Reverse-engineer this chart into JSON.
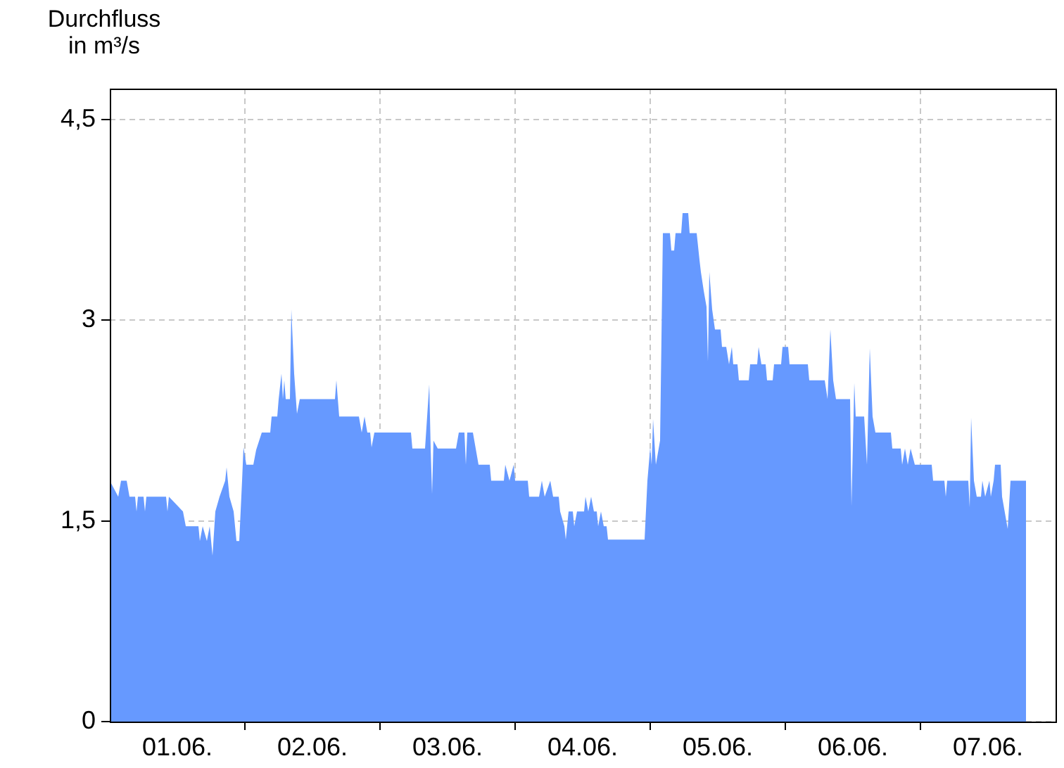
{
  "chart_data": {
    "type": "area",
    "ylabel": "Durchfluss in m³/s",
    "color": "#6699ff",
    "grid": true,
    "xlim": [
      "--06-01T00:00",
      "--06-08T00:00"
    ],
    "ylim": [
      0,
      4.73
    ],
    "xticks": [
      {
        "value": "--06-01T12:00",
        "label": "01.06."
      },
      {
        "value": "--06-02T00:00",
        "label": null
      },
      {
        "value": "--06-02T12:00",
        "label": "02.06."
      },
      {
        "value": "--06-03T00:00",
        "label": null
      },
      {
        "value": "--06-03T12:00",
        "label": "03.06."
      },
      {
        "value": "--06-04T00:00",
        "label": null
      },
      {
        "value": "--06-04T12:00",
        "label": "04.06."
      },
      {
        "value": "--06-05T00:00",
        "label": null
      },
      {
        "value": "--06-05T12:00",
        "label": "05.06."
      },
      {
        "value": "--06-06T00:00",
        "label": null
      },
      {
        "value": "--06-06T12:00",
        "label": "06.06."
      },
      {
        "value": "--06-07T00:00",
        "label": null
      },
      {
        "value": "--06-07T12:00",
        "label": "07.06."
      }
    ],
    "yticks": [
      0,
      {
        "value": 1.5,
        "label": "1,5"
      },
      3,
      {
        "value": 4.5,
        "label": "4,5"
      }
    ],
    "x": [
      "--06-01T00:00",
      "--06-01T01:30",
      "--06-01T02:00",
      "--06-01T03:00",
      "--06-01T03:30",
      "--06-01T04:30",
      "--06-01T04:45",
      "--06-01T05:00",
      "--06-01T06:00",
      "--06-01T06:15",
      "--06-01T06:30",
      "--06-01T10:00",
      "--06-01T10:15",
      "--06-01T10:30",
      "--06-01T13:00",
      "--06-01T13:30",
      "--06-01T15:45",
      "--06-01T16:00",
      "--06-01T16:30",
      "--06-01T17:15",
      "--06-01T17:45",
      "--06-01T18:15",
      "--06-01T18:45",
      "--06-01T19:30",
      "--06-01T20:30",
      "--06-01T20:45",
      "--06-01T21:15",
      "--06-01T22:00",
      "--06-01T22:30",
      "--06-01T23:00",
      "--06-01T23:30",
      "--06-01T23:45",
      "--06-02T00:15",
      "--06-02T01:30",
      "--06-02T02:00",
      "--06-02T03:00",
      "--06-02T04:30",
      "--06-02T04:45",
      "--06-02T05:45",
      "--06-02T06:00",
      "--06-02T06:30",
      "--06-02T06:45",
      "--06-02T07:00",
      "--06-02T07:15",
      "--06-02T08:00",
      "--06-02T08:15",
      "--06-02T08:45",
      "--06-02T09:15",
      "--06-02T09:45",
      "--06-02T16:00",
      "--06-02T16:15",
      "--06-02T16:45",
      "--06-02T20:15",
      "--06-02T20:45",
      "--06-02T21:15",
      "--06-02T21:45",
      "--06-02T22:15",
      "--06-02T22:30",
      "--06-02T23:00",
      "--06-03T05:30",
      "--06-03T05:45",
      "--06-03T08:00",
      "--06-03T08:45",
      "--06-03T09:00",
      "--06-03T09:15",
      "--06-03T09:30",
      "--06-03T10:15",
      "--06-03T13:30",
      "--06-03T14:00",
      "--06-03T15:00",
      "--06-03T15:15",
      "--06-03T15:30",
      "--06-03T16:30",
      "--06-03T17:30",
      "--06-03T19:30",
      "--06-03T19:45",
      "--06-03T22:00",
      "--06-03T22:15",
      "--06-03T23:00",
      "--06-03T23:45",
      "--06-04T00:00",
      "--06-04T02:15",
      "--06-04T02:30",
      "--06-04T04:15",
      "--06-04T04:45",
      "--06-04T05:15",
      "--06-04T06:15",
      "--06-04T06:45",
      "--06-04T07:45",
      "--06-04T08:00",
      "--06-04T08:45",
      "--06-04T09:00",
      "--06-04T09:30",
      "--06-04T10:15",
      "--06-04T10:30",
      "--06-04T11:00",
      "--06-04T12:15",
      "--06-04T12:30",
      "--06-04T13:00",
      "--06-04T13:30",
      "--06-04T14:00",
      "--06-04T14:30",
      "--06-04T14:45",
      "--06-04T15:15",
      "--06-04T15:45",
      "--06-04T16:15",
      "--06-04T16:30",
      "--06-04T23:00",
      "--06-04T23:30",
      "--06-05T00:00",
      "--06-05T00:15",
      "--06-05T00:30",
      "--06-05T01:00",
      "--06-05T01:45",
      "--06-05T02:15",
      "--06-05T03:30",
      "--06-05T03:45",
      "--06-05T04:15",
      "--06-05T04:30",
      "--06-05T05:30",
      "--06-05T05:45",
      "--06-05T06:45",
      "--06-05T07:00",
      "--06-05T08:15",
      "--06-05T08:45",
      "--06-05T09:00",
      "--06-05T09:30",
      "--06-05T10:00",
      "--06-05T10:15",
      "--06-05T10:30",
      "--06-05T11:00",
      "--06-05T11:30",
      "--06-05T12:30",
      "--06-05T12:45",
      "--06-05T13:30",
      "--06-05T14:00",
      "--06-05T14:30",
      "--06-05T14:45",
      "--06-05T15:30",
      "--06-05T15:45",
      "--06-05T17:30",
      "--06-05T17:45",
      "--06-05T19:00",
      "--06-05T19:15",
      "--06-05T19:45",
      "--06-05T20:30",
      "--06-05T20:45",
      "--06-05T21:45",
      "--06-05T22:00",
      "--06-05T23:15",
      "--06-05T23:30",
      "--06-06T00:30",
      "--06-06T00:45",
      "--06-06T04:00",
      "--06-06T04:15",
      "--06-06T05:30",
      "--06-06T07:00",
      "--06-06T07:30",
      "--06-06T08:00",
      "--06-06T08:30",
      "--06-06T09:00",
      "--06-06T11:30",
      "--06-06T11:45",
      "--06-06T12:15",
      "--06-06T12:30",
      "--06-06T14:00",
      "--06-06T14:30",
      "--06-06T15:00",
      "--06-06T15:30",
      "--06-06T16:00",
      "--06-06T18:45",
      "--06-06T19:00",
      "--06-06T20:30",
      "--06-06T20:45",
      "--06-06T21:15",
      "--06-06T21:45",
      "--06-06T22:15",
      "--06-06T23:00",
      "--06-07T02:00",
      "--06-07T02:15",
      "--06-07T04:15",
      "--06-07T04:30",
      "--06-07T04:45",
      "--06-07T08:30",
      "--06-07T08:45",
      "--06-07T09:00",
      "--06-07T09:30",
      "--06-07T10:00",
      "--06-07T10:45",
      "--06-07T11:00",
      "--06-07T11:30",
      "--06-07T12:15",
      "--06-07T12:30",
      "--06-07T13:00",
      "--06-07T13:15",
      "--06-07T14:15",
      "--06-07T14:30",
      "--06-07T15:30",
      "--06-07T16:00",
      "--06-07T18:45"
    ],
    "values": [
      1.8,
      1.68,
      1.8,
      1.8,
      1.68,
      1.68,
      1.57,
      1.68,
      1.68,
      1.57,
      1.68,
      1.68,
      1.57,
      1.68,
      1.57,
      1.46,
      1.46,
      1.35,
      1.46,
      1.35,
      1.46,
      1.24,
      1.57,
      1.68,
      1.8,
      1.9,
      1.68,
      1.57,
      1.35,
      1.35,
      1.8,
      2.05,
      1.92,
      1.92,
      2.03,
      2.16,
      2.16,
      2.28,
      2.28,
      2.41,
      2.6,
      2.41,
      2.55,
      2.41,
      2.41,
      3.08,
      2.6,
      2.3,
      2.41,
      2.41,
      2.55,
      2.28,
      2.28,
      2.16,
      2.28,
      2.16,
      2.16,
      2.05,
      2.16,
      2.16,
      2.04,
      2.04,
      2.52,
      2.04,
      1.7,
      2.1,
      2.04,
      2.04,
      2.16,
      2.16,
      1.92,
      2.16,
      2.16,
      1.92,
      1.92,
      1.8,
      1.8,
      1.92,
      1.8,
      1.92,
      1.8,
      1.8,
      1.68,
      1.68,
      1.8,
      1.68,
      1.8,
      1.68,
      1.68,
      1.57,
      1.46,
      1.36,
      1.57,
      1.57,
      1.46,
      1.57,
      1.57,
      1.68,
      1.57,
      1.68,
      1.57,
      1.57,
      1.46,
      1.57,
      1.46,
      1.46,
      1.36,
      1.36,
      1.8,
      2.05,
      1.92,
      2.26,
      1.92,
      2.1,
      3.65,
      3.65,
      3.52,
      3.52,
      3.65,
      3.65,
      3.8,
      3.8,
      3.65,
      3.65,
      3.45,
      3.36,
      3.22,
      3.1,
      2.69,
      3.36,
      3.08,
      2.93,
      2.93,
      2.8,
      2.8,
      2.67,
      2.8,
      2.67,
      2.67,
      2.55,
      2.55,
      2.67,
      2.67,
      2.8,
      2.67,
      2.67,
      2.55,
      2.55,
      2.67,
      2.67,
      2.8,
      2.8,
      2.67,
      2.67,
      2.55,
      2.55,
      2.55,
      2.41,
      2.93,
      2.55,
      2.41,
      2.41,
      1.61,
      2.53,
      2.28,
      2.28,
      1.92,
      2.79,
      2.28,
      2.16,
      2.16,
      2.04,
      2.04,
      1.92,
      2.04,
      1.92,
      2.04,
      1.92,
      1.92,
      1.8,
      1.8,
      1.68,
      1.8,
      1.8,
      1.6,
      2.27,
      1.8,
      1.68,
      1.68,
      1.8,
      1.68,
      1.8,
      1.68,
      1.8,
      1.92,
      1.92,
      1.68,
      1.44,
      1.8,
      1.8
    ]
  }
}
